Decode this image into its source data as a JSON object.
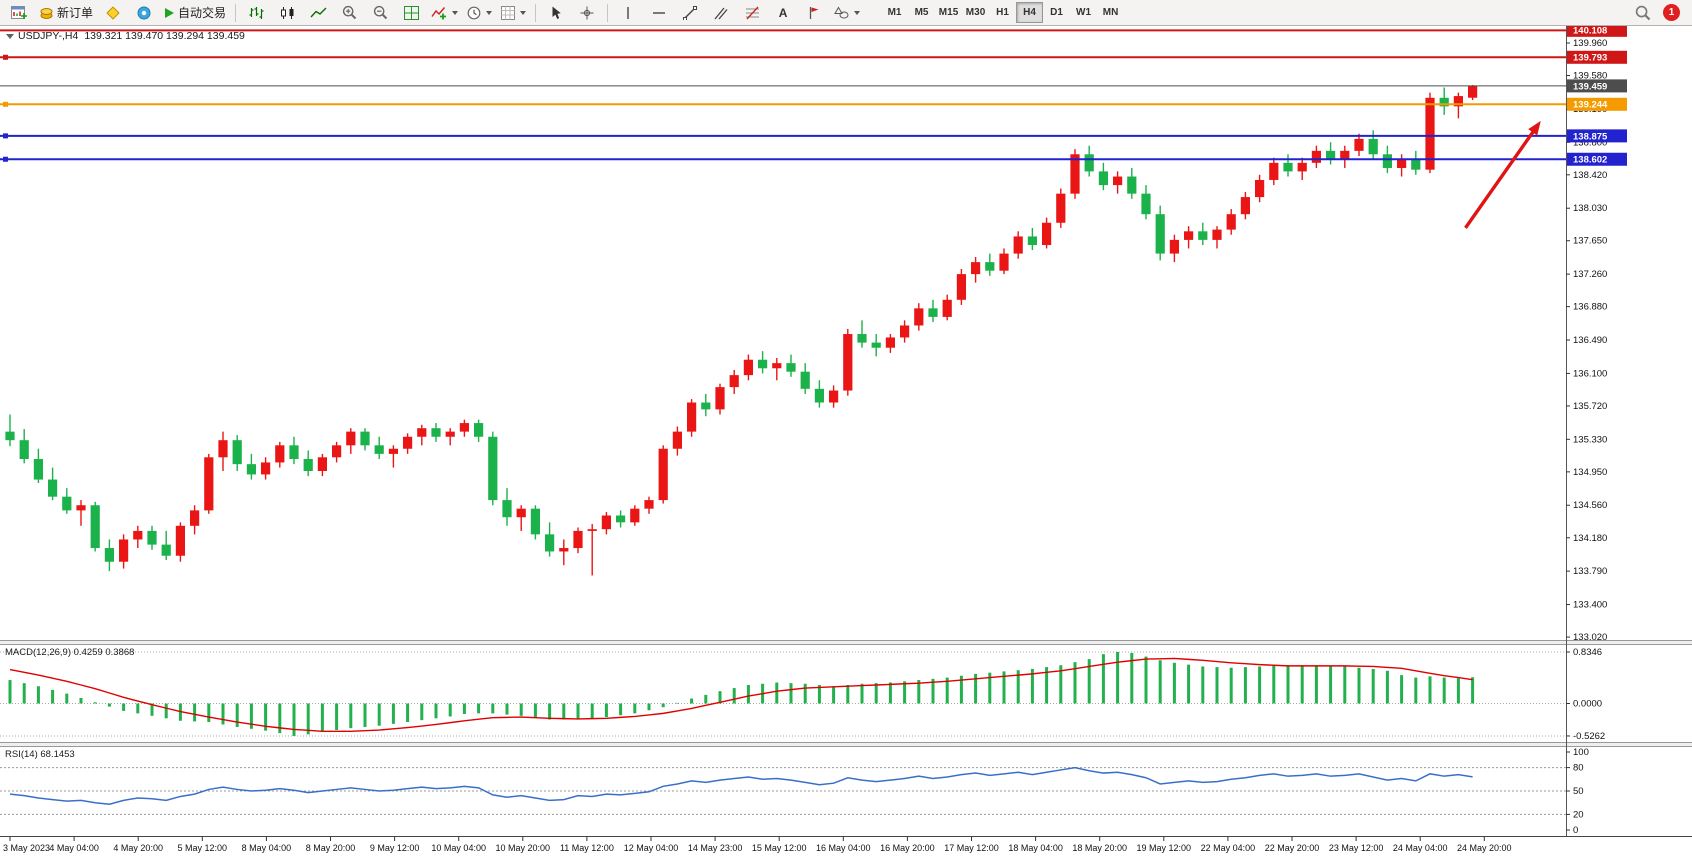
{
  "toolbar": {
    "new_order_label": "新订单",
    "autotrading_label": "自动交易",
    "text_tool_label": "A",
    "timeframes": [
      "M1",
      "M5",
      "M15",
      "M30",
      "H1",
      "H4",
      "D1",
      "W1",
      "MN"
    ],
    "active_timeframe": "H4",
    "notification_count": "1"
  },
  "chart_header": {
    "symbol_period": "USDJPY-,H4",
    "ohlc_values": "139.321 139.470 139.294 139.459"
  },
  "chart_data": [
    {
      "type": "candlestick",
      "title": "USDJPY-,H4",
      "timeframe": "H4",
      "current_bar": {
        "open": 139.321,
        "high": 139.47,
        "low": 139.294,
        "close": 139.459
      },
      "up_color": "#ea1515",
      "down_color": "#1cb24b",
      "ylim": [
        133.02,
        140.15
      ],
      "y_ticks": [
        139.96,
        139.58,
        139.19,
        138.8,
        138.42,
        138.03,
        137.65,
        137.26,
        136.88,
        136.49,
        136.1,
        135.72,
        135.33,
        134.95,
        134.56,
        134.18,
        133.79,
        133.4,
        133.02
      ],
      "price_lines": [
        {
          "label": "140.108",
          "value": 140.108,
          "color": "#cf1717",
          "width": 2,
          "handle": false
        },
        {
          "label": "139.793",
          "value": 139.793,
          "color": "#cf1717",
          "width": 2,
          "handle": true
        },
        {
          "label": "139.459",
          "value": 139.459,
          "color": "#4d4d4d",
          "width": 1,
          "handle": false
        },
        {
          "label": "139.244",
          "value": 139.244,
          "color": "#f59b00",
          "width": 2,
          "handle": true
        },
        {
          "label": "138.875",
          "value": 138.875,
          "color": "#2222cf",
          "width": 2,
          "handle": true
        },
        {
          "label": "138.602",
          "value": 138.602,
          "color": "#2222cf",
          "width": 2,
          "handle": true
        }
      ],
      "annotation_arrow": {
        "from_bar": 102.5,
        "from_price": 137.8,
        "to_bar": 107.8,
        "to_price": 139.05,
        "color": "#e01414"
      },
      "candles": [
        [
          135.42,
          135.62,
          135.25,
          135.32
        ],
        [
          135.32,
          135.45,
          135.05,
          135.1
        ],
        [
          135.1,
          135.22,
          134.82,
          134.86
        ],
        [
          134.86,
          135.0,
          134.62,
          134.66
        ],
        [
          134.66,
          134.76,
          134.46,
          134.5
        ],
        [
          134.5,
          134.62,
          134.32,
          134.56
        ],
        [
          134.56,
          134.6,
          134.02,
          134.06
        ],
        [
          134.06,
          134.16,
          133.79,
          133.9
        ],
        [
          133.9,
          134.22,
          133.82,
          134.16
        ],
        [
          134.16,
          134.32,
          134.06,
          134.26
        ],
        [
          134.26,
          134.32,
          134.04,
          134.1
        ],
        [
          134.1,
          134.26,
          133.92,
          133.97
        ],
        [
          133.97,
          134.36,
          133.9,
          134.32
        ],
        [
          134.32,
          134.56,
          134.22,
          134.5
        ],
        [
          134.5,
          135.16,
          134.46,
          135.12
        ],
        [
          135.12,
          135.42,
          134.96,
          135.32
        ],
        [
          135.32,
          135.38,
          134.96,
          135.04
        ],
        [
          135.04,
          135.16,
          134.86,
          134.92
        ],
        [
          134.92,
          135.12,
          134.86,
          135.06
        ],
        [
          135.06,
          135.3,
          135.0,
          135.26
        ],
        [
          135.26,
          135.36,
          135.04,
          135.1
        ],
        [
          135.1,
          135.2,
          134.9,
          134.96
        ],
        [
          134.96,
          135.16,
          134.9,
          135.12
        ],
        [
          135.12,
          135.3,
          135.06,
          135.26
        ],
        [
          135.26,
          135.46,
          135.16,
          135.42
        ],
        [
          135.42,
          135.46,
          135.2,
          135.26
        ],
        [
          135.26,
          135.36,
          135.1,
          135.16
        ],
        [
          135.16,
          135.26,
          135.0,
          135.22
        ],
        [
          135.22,
          135.4,
          135.16,
          135.36
        ],
        [
          135.36,
          135.5,
          135.26,
          135.46
        ],
        [
          135.46,
          135.52,
          135.3,
          135.36
        ],
        [
          135.36,
          135.46,
          135.26,
          135.42
        ],
        [
          135.42,
          135.56,
          135.36,
          135.52
        ],
        [
          135.52,
          135.56,
          135.3,
          135.36
        ],
        [
          135.36,
          135.42,
          134.56,
          134.62
        ],
        [
          134.62,
          134.76,
          134.32,
          134.42
        ],
        [
          134.42,
          134.56,
          134.26,
          134.52
        ],
        [
          134.52,
          134.56,
          134.16,
          134.22
        ],
        [
          134.22,
          134.36,
          133.96,
          134.02
        ],
        [
          134.02,
          134.16,
          133.86,
          134.06
        ],
        [
          134.06,
          134.3,
          134.0,
          134.26
        ],
        [
          134.26,
          134.34,
          133.74,
          134.28
        ],
        [
          134.28,
          134.48,
          134.22,
          134.44
        ],
        [
          134.44,
          134.5,
          134.3,
          134.36
        ],
        [
          134.36,
          134.56,
          134.32,
          134.52
        ],
        [
          134.52,
          134.66,
          134.46,
          134.62
        ],
        [
          134.62,
          135.26,
          134.58,
          135.22
        ],
        [
          135.22,
          135.48,
          135.14,
          135.42
        ],
        [
          135.42,
          135.8,
          135.36,
          135.76
        ],
        [
          135.76,
          135.86,
          135.6,
          135.68
        ],
        [
          135.68,
          135.98,
          135.62,
          135.94
        ],
        [
          135.94,
          136.14,
          135.86,
          136.08
        ],
        [
          136.08,
          136.32,
          136.02,
          136.26
        ],
        [
          136.26,
          136.36,
          136.1,
          136.16
        ],
        [
          136.16,
          136.28,
          136.02,
          136.22
        ],
        [
          136.22,
          136.32,
          136.06,
          136.12
        ],
        [
          136.12,
          136.22,
          135.86,
          135.92
        ],
        [
          135.92,
          136.02,
          135.7,
          135.76
        ],
        [
          135.76,
          135.96,
          135.7,
          135.9
        ],
        [
          135.9,
          136.62,
          135.84,
          136.56
        ],
        [
          136.56,
          136.72,
          136.4,
          136.46
        ],
        [
          136.46,
          136.56,
          136.3,
          136.4
        ],
        [
          136.4,
          136.56,
          136.34,
          136.52
        ],
        [
          136.52,
          136.72,
          136.46,
          136.66
        ],
        [
          136.66,
          136.92,
          136.6,
          136.86
        ],
        [
          136.86,
          136.96,
          136.7,
          136.76
        ],
        [
          136.76,
          137.02,
          136.72,
          136.96
        ],
        [
          136.96,
          137.32,
          136.9,
          137.26
        ],
        [
          137.26,
          137.46,
          137.16,
          137.4
        ],
        [
          137.4,
          137.5,
          137.24,
          137.3
        ],
        [
          137.3,
          137.56,
          137.26,
          137.5
        ],
        [
          137.5,
          137.76,
          137.44,
          137.7
        ],
        [
          137.7,
          137.8,
          137.54,
          137.6
        ],
        [
          137.6,
          137.92,
          137.56,
          137.86
        ],
        [
          137.86,
          138.26,
          137.8,
          138.2
        ],
        [
          138.2,
          138.72,
          138.14,
          138.66
        ],
        [
          138.66,
          138.76,
          138.4,
          138.46
        ],
        [
          138.46,
          138.56,
          138.24,
          138.3
        ],
        [
          138.3,
          138.46,
          138.2,
          138.4
        ],
        [
          138.4,
          138.5,
          138.14,
          138.2
        ],
        [
          138.2,
          138.3,
          137.9,
          137.96
        ],
        [
          137.96,
          138.06,
          137.42,
          137.5
        ],
        [
          137.5,
          137.72,
          137.4,
          137.66
        ],
        [
          137.66,
          137.82,
          137.56,
          137.76
        ],
        [
          137.76,
          137.86,
          137.6,
          137.66
        ],
        [
          137.66,
          137.82,
          137.56,
          137.78
        ],
        [
          137.78,
          138.02,
          137.72,
          137.96
        ],
        [
          137.96,
          138.22,
          137.9,
          138.16
        ],
        [
          138.16,
          138.42,
          138.1,
          138.36
        ],
        [
          138.36,
          138.62,
          138.3,
          138.56
        ],
        [
          138.56,
          138.66,
          138.4,
          138.46
        ],
        [
          138.46,
          138.62,
          138.36,
          138.56
        ],
        [
          138.56,
          138.76,
          138.5,
          138.7
        ],
        [
          138.7,
          138.8,
          138.54,
          138.6
        ],
        [
          138.6,
          138.76,
          138.5,
          138.7
        ],
        [
          138.7,
          138.9,
          138.64,
          138.84
        ],
        [
          138.84,
          138.94,
          138.6,
          138.66
        ],
        [
          138.66,
          138.76,
          138.44,
          138.5
        ],
        [
          138.5,
          138.66,
          138.4,
          138.6
        ],
        [
          138.6,
          138.7,
          138.42,
          138.48
        ],
        [
          138.48,
          139.38,
          138.44,
          139.32
        ],
        [
          139.32,
          139.44,
          139.12,
          139.22
        ],
        [
          139.22,
          139.38,
          139.08,
          139.34
        ],
        [
          139.321,
          139.47,
          139.294,
          139.459
        ]
      ]
    },
    {
      "type": "macd",
      "label": "MACD(12,26,9)",
      "main_value": "0.4259",
      "signal_value": "0.3868",
      "histogram_color": "#22b14c",
      "signal_color": "#e00000",
      "y_ticks": [
        0.8346,
        0,
        -0.5262
      ],
      "histogram": [
        0.38,
        0.33,
        0.28,
        0.22,
        0.16,
        0.09,
        0.02,
        -0.05,
        -0.12,
        -0.16,
        -0.2,
        -0.24,
        -0.28,
        -0.29,
        -0.3,
        -0.34,
        -0.38,
        -0.41,
        -0.44,
        -0.48,
        -0.5262,
        -0.5,
        -0.46,
        -0.43,
        -0.4,
        -0.38,
        -0.36,
        -0.33,
        -0.3,
        -0.27,
        -0.24,
        -0.21,
        -0.17,
        -0.16,
        -0.16,
        -0.18,
        -0.2,
        -0.23,
        -0.26,
        -0.26,
        -0.26,
        -0.24,
        -0.22,
        -0.19,
        -0.16,
        -0.11,
        -0.06,
        0.01,
        0.08,
        0.14,
        0.2,
        0.25,
        0.3,
        0.32,
        0.34,
        0.33,
        0.32,
        0.3,
        0.28,
        0.3,
        0.32,
        0.33,
        0.34,
        0.36,
        0.38,
        0.4,
        0.42,
        0.45,
        0.48,
        0.5,
        0.52,
        0.54,
        0.56,
        0.59,
        0.62,
        0.67,
        0.72,
        0.8,
        0.8346,
        0.82,
        0.76,
        0.7,
        0.66,
        0.63,
        0.6,
        0.59,
        0.58,
        0.59,
        0.6,
        0.61,
        0.62,
        0.62,
        0.62,
        0.61,
        0.6,
        0.58,
        0.56,
        0.53,
        0.46,
        0.42,
        0.44,
        0.42,
        0.41,
        0.4259
      ],
      "signal": [
        0.55,
        0.505,
        0.46,
        0.41,
        0.36,
        0.3,
        0.24,
        0.17,
        0.1,
        0.04,
        -0.02,
        -0.075,
        -0.13,
        -0.175,
        -0.22,
        -0.26,
        -0.3,
        -0.335,
        -0.37,
        -0.395,
        -0.42,
        -0.435,
        -0.45,
        -0.45,
        -0.45,
        -0.44,
        -0.43,
        -0.41,
        -0.39,
        -0.365,
        -0.34,
        -0.31,
        -0.28,
        -0.255,
        -0.23,
        -0.225,
        -0.22,
        -0.23,
        -0.24,
        -0.245,
        -0.25,
        -0.245,
        -0.24,
        -0.225,
        -0.21,
        -0.185,
        -0.16,
        -0.12,
        -0.08,
        -0.03,
        0.02,
        0.07,
        0.12,
        0.16,
        0.2,
        0.225,
        0.25,
        0.26,
        0.27,
        0.28,
        0.29,
        0.3,
        0.31,
        0.32,
        0.33,
        0.345,
        0.36,
        0.38,
        0.4,
        0.42,
        0.44,
        0.46,
        0.48,
        0.505,
        0.53,
        0.565,
        0.6,
        0.635,
        0.67,
        0.695,
        0.72,
        0.725,
        0.73,
        0.715,
        0.7,
        0.68,
        0.66,
        0.645,
        0.63,
        0.62,
        0.61,
        0.61,
        0.61,
        0.61,
        0.61,
        0.605,
        0.6,
        0.585,
        0.57,
        0.53,
        0.49,
        0.45,
        0.42,
        0.3868
      ]
    },
    {
      "type": "rsi",
      "label": "RSI(14)",
      "value": "68.1453",
      "line_color": "#3a6fc8",
      "levels": [
        80,
        50,
        20
      ],
      "y_ticks": [
        100,
        80,
        50,
        20,
        0
      ],
      "range": [
        0,
        100
      ],
      "values": [
        46,
        44,
        41,
        39,
        37,
        38,
        35,
        33,
        38,
        41,
        40,
        38,
        43,
        46,
        52,
        55,
        52,
        50,
        51,
        53,
        51,
        48,
        50,
        52,
        54,
        52,
        50,
        51,
        53,
        55,
        53,
        54,
        56,
        54,
        45,
        42,
        44,
        41,
        38,
        39,
        44,
        43,
        46,
        45,
        47,
        49,
        56,
        59,
        63,
        61,
        64,
        66,
        68,
        65,
        66,
        64,
        61,
        58,
        60,
        67,
        64,
        62,
        64,
        66,
        69,
        66,
        68,
        71,
        73,
        70,
        72,
        74,
        71,
        74,
        77,
        80,
        76,
        73,
        74,
        71,
        67,
        59,
        61,
        63,
        61,
        62,
        65,
        67,
        70,
        72,
        69,
        70,
        72,
        69,
        70,
        72,
        68,
        64,
        66,
        63,
        72,
        69,
        71,
        68.1453
      ]
    },
    {
      "type": "time_axis",
      "labels": [
        "3 May 2023",
        "4 May 04:00",
        "4 May 20:00",
        "5 May 12:00",
        "8 May 04:00",
        "8 May 20:00",
        "9 May 12:00",
        "10 May 04:00",
        "10 May 20:00",
        "11 May 12:00",
        "12 May 04:00",
        "14 May 23:00",
        "15 May 12:00",
        "16 May 04:00",
        "16 May 20:00",
        "17 May 12:00",
        "18 May 04:00",
        "18 May 20:00",
        "19 May 12:00",
        "22 May 04:00",
        "22 May 20:00",
        "23 May 12:00",
        "24 May 04:00",
        "24 May 20:00"
      ]
    }
  ]
}
